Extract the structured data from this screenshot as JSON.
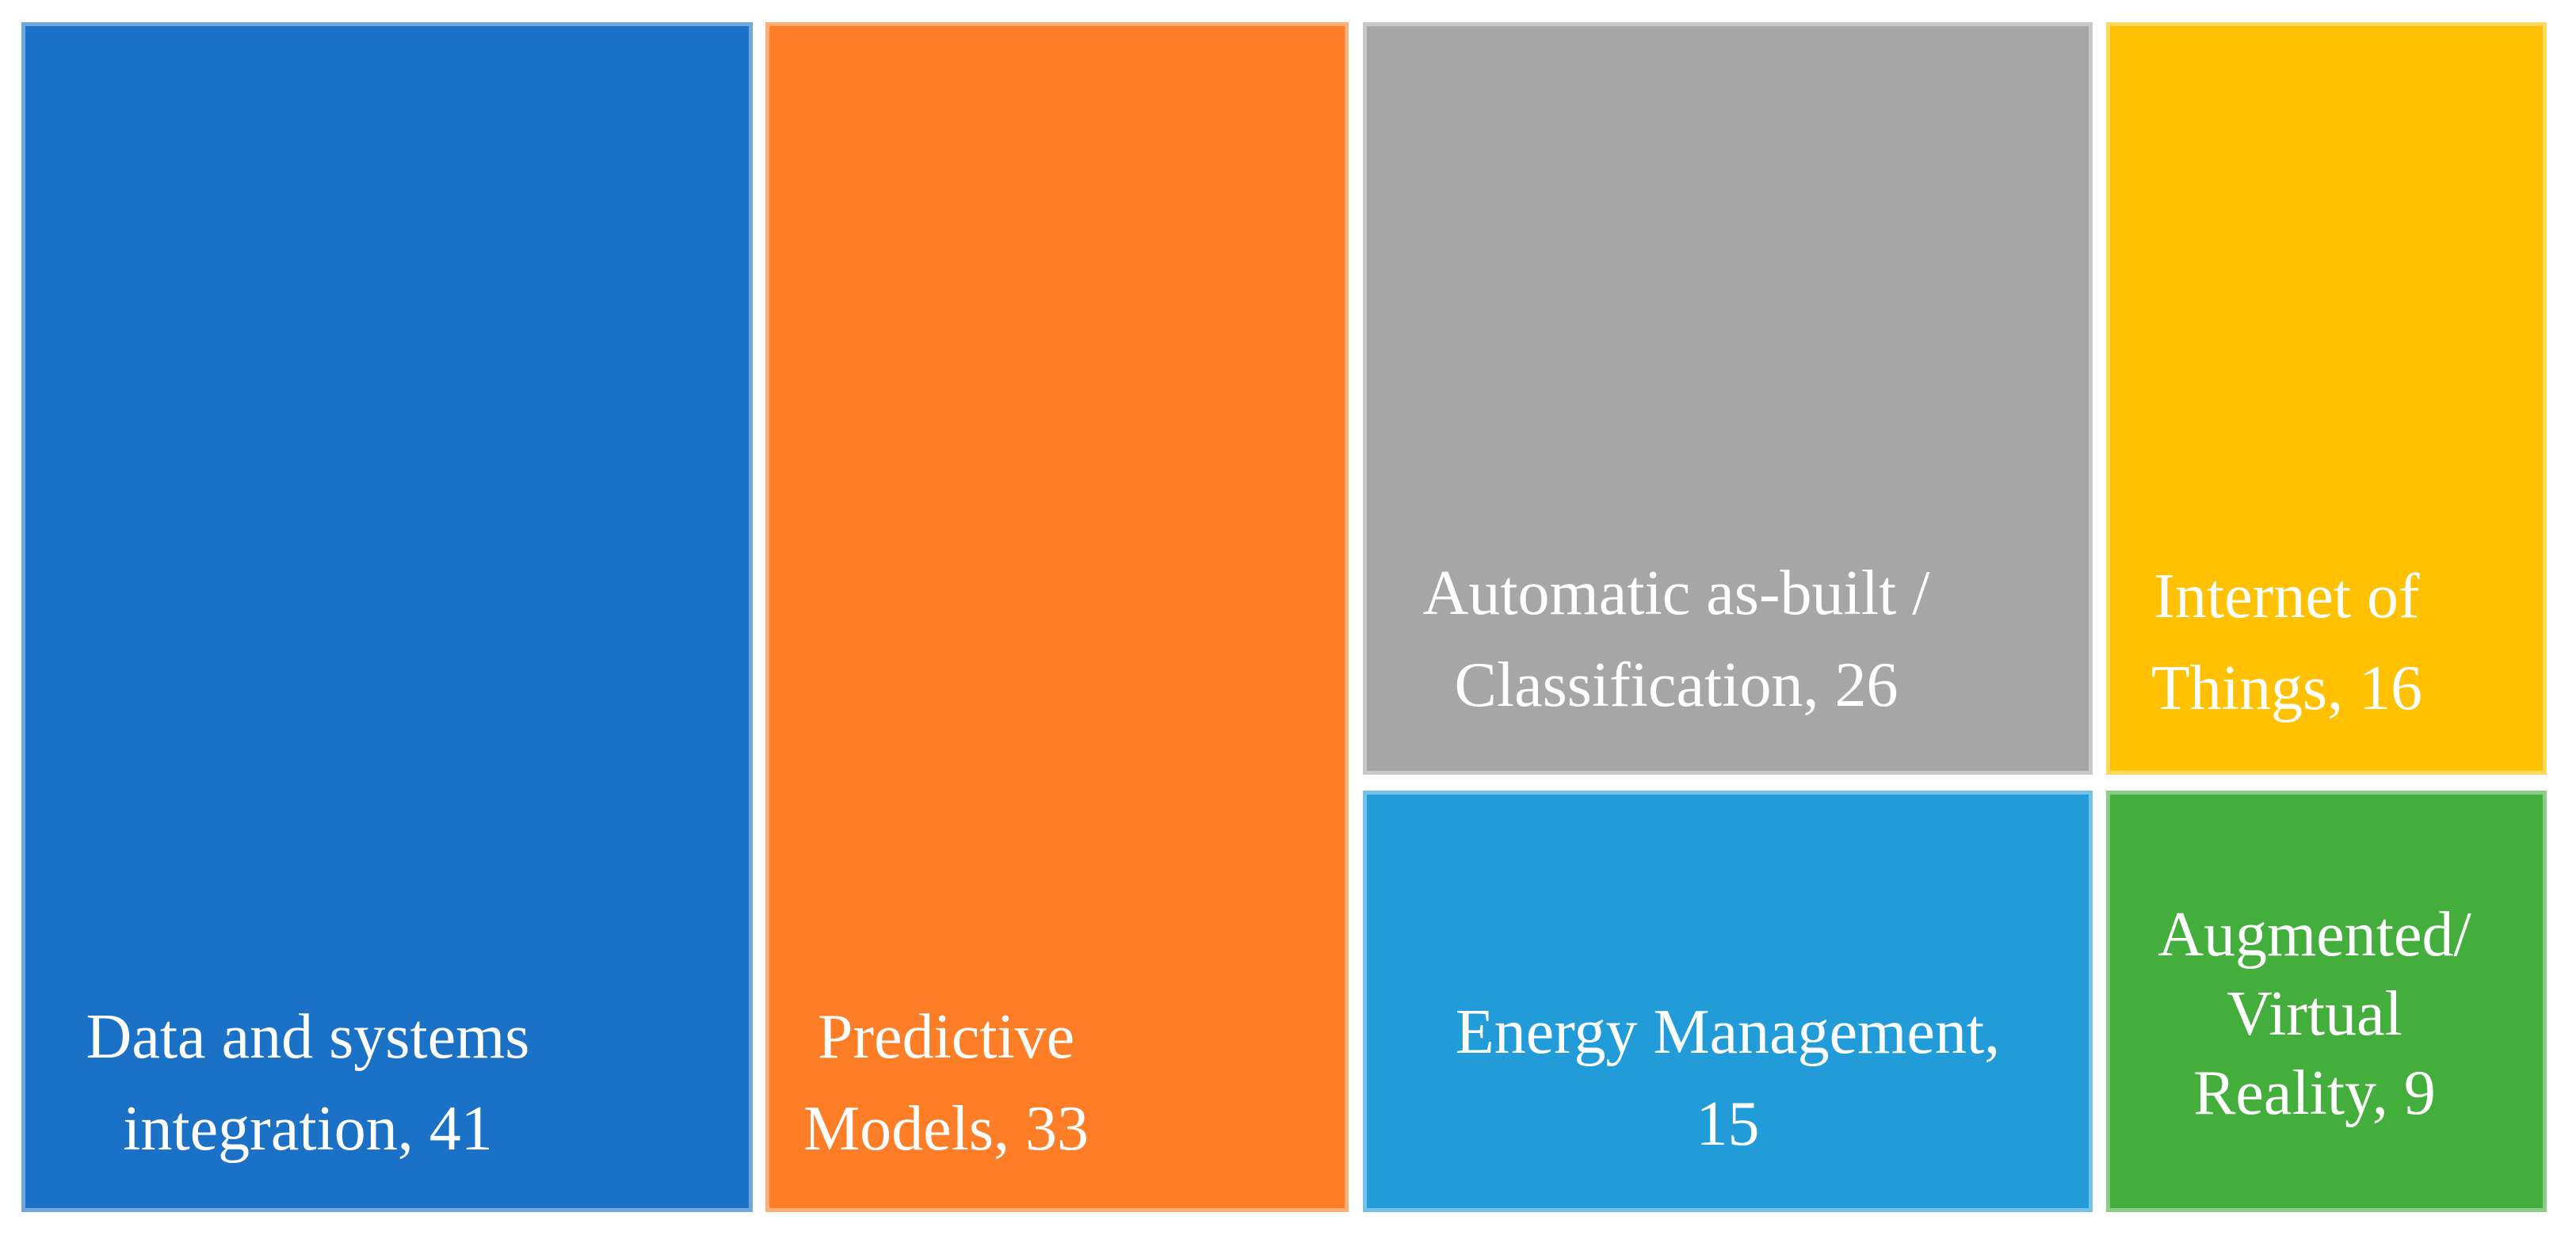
{
  "chart_data": {
    "type": "treemap",
    "title": "",
    "legend": "none",
    "value_label_format": "name, value",
    "text_color": "#ffffff",
    "background_color": "#ffffff",
    "items": [
      {
        "name": "Data and systems integration",
        "value": 41,
        "color": "#1b71c6",
        "label_lines": [
          "Data and systems",
          "integration, 41"
        ]
      },
      {
        "name": "Predictive Models",
        "value": 33,
        "color": "#fd7e27",
        "label_lines": [
          "Predictive",
          "Models, 33"
        ]
      },
      {
        "name": "Automatic as-built / Classification",
        "value": 26,
        "color": "#a6a6a6",
        "label_lines": [
          "Automatic as-built /",
          "Classification, 26"
        ]
      },
      {
        "name": "Internet of Things",
        "value": 16,
        "color": "#ffc102",
        "label_lines": [
          "Internet of",
          "Things, 16"
        ]
      },
      {
        "name": "Energy Management",
        "value": 15,
        "color": "#219cd8",
        "label_lines": [
          "Energy Management,",
          "15"
        ]
      },
      {
        "name": "Augmented/Virtual Reality",
        "value": 9,
        "color": "#44ae3d",
        "label_lines": [
          "Augmented/",
          "Virtual",
          "Reality, 9"
        ]
      }
    ]
  }
}
